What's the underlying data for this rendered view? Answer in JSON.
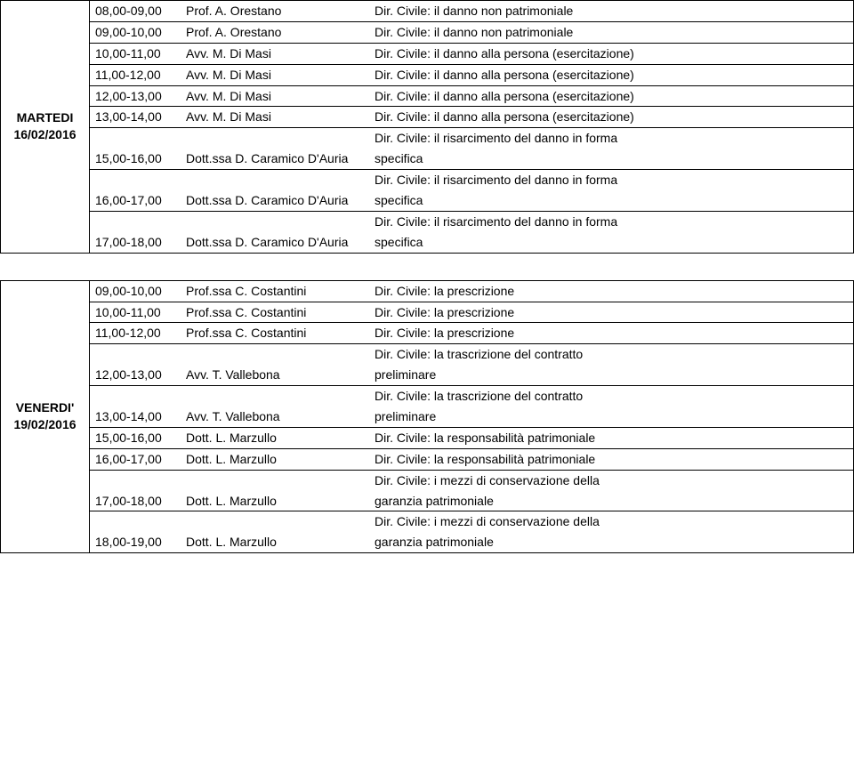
{
  "blocks": [
    {
      "day_label_1": "MARTEDI",
      "day_label_2": "16/02/2016",
      "vcenter": 5,
      "groups": [
        {
          "rows": [
            {
              "time": "08,00-09,00",
              "inst": "Prof. A. Orestano",
              "topic": "Dir. Civile: il danno non patrimoniale"
            }
          ]
        },
        {
          "rows": [
            {
              "time": "09,00-10,00",
              "inst": "Prof. A. Orestano",
              "topic": "Dir. Civile: il danno non patrimoniale"
            }
          ]
        },
        {
          "rows": [
            {
              "time": "10,00-11,00",
              "inst": "Avv. M. Di Masi",
              "topic": "Dir. Civile: il danno alla persona (esercitazione)"
            }
          ]
        },
        {
          "rows": [
            {
              "time": "11,00-12,00",
              "inst": "Avv. M. Di Masi",
              "topic": "Dir. Civile: il danno alla persona (esercitazione)"
            }
          ]
        },
        {
          "rows": [
            {
              "time": "12,00-13,00",
              "inst": "Avv. M. Di Masi",
              "topic": "Dir. Civile: il danno alla persona (esercitazione)"
            }
          ]
        },
        {
          "rows": [
            {
              "time": "13,00-14,00",
              "inst": "Avv. M. Di Masi",
              "topic": "Dir. Civile: il danno alla persona (esercitazione)"
            }
          ]
        },
        {
          "rows": [
            {
              "time": "",
              "inst": "",
              "topic": "Dir. Civile: il risarcimento del danno in forma"
            },
            {
              "time": "15,00-16,00",
              "inst": "Dott.ssa D. Caramico D'Auria",
              "topic": "specifica"
            }
          ]
        },
        {
          "rows": [
            {
              "time": "",
              "inst": "",
              "topic": "Dir. Civile: il risarcimento del danno in forma"
            },
            {
              "time": "16,00-17,00",
              "inst": "Dott.ssa D. Caramico D'Auria",
              "topic": "specifica"
            }
          ]
        },
        {
          "rows": [
            {
              "time": "",
              "inst": "",
              "topic": "Dir. Civile: il risarcimento del danno in forma"
            },
            {
              "time": "17,00-18,00",
              "inst": "Dott.ssa D. Caramico D'Auria",
              "topic": "specifica"
            }
          ]
        }
      ]
    },
    {
      "day_label_1": "VENERDI'",
      "day_label_2": "19/02/2016",
      "vcenter": 5,
      "groups": [
        {
          "rows": [
            {
              "time": "09,00-10,00",
              "inst": "Prof.ssa C. Costantini",
              "topic": "Dir. Civile: la prescrizione"
            }
          ]
        },
        {
          "rows": [
            {
              "time": "10,00-11,00",
              "inst": "Prof.ssa C. Costantini",
              "topic": "Dir. Civile: la prescrizione"
            }
          ]
        },
        {
          "rows": [
            {
              "time": "11,00-12,00",
              "inst": "Prof.ssa C. Costantini",
              "topic": "Dir. Civile: la prescrizione"
            }
          ]
        },
        {
          "rows": [
            {
              "time": "",
              "inst": "",
              "topic": "Dir. Civile: la trascrizione del contratto"
            },
            {
              "time": "12,00-13,00",
              "inst": "Avv. T. Vallebona",
              "topic": "preliminare"
            }
          ]
        },
        {
          "rows": [
            {
              "time": "",
              "inst": "",
              "topic": "Dir. Civile: la trascrizione del contratto"
            },
            {
              "time": "13,00-14,00",
              "inst": "Avv. T. Vallebona",
              "topic": "preliminare"
            }
          ]
        },
        {
          "rows": [
            {
              "time": "15,00-16,00",
              "inst": "Dott. L. Marzullo",
              "topic": "Dir. Civile: la responsabilità patrimoniale"
            }
          ]
        },
        {
          "rows": [
            {
              "time": "16,00-17,00",
              "inst": "Dott. L. Marzullo",
              "topic": "Dir. Civile: la responsabilità patrimoniale"
            }
          ]
        },
        {
          "rows": [
            {
              "time": "",
              "inst": "",
              "topic": "Dir. Civile: i mezzi di conservazione della"
            },
            {
              "time": "17,00-18,00",
              "inst": "Dott. L. Marzullo",
              "topic": "garanzia patrimoniale"
            }
          ]
        },
        {
          "rows": [
            {
              "time": "",
              "inst": "",
              "topic": "Dir. Civile: i mezzi di conservazione della"
            },
            {
              "time": "18,00-19,00",
              "inst": "Dott. L. Marzullo",
              "topic": "garanzia patrimoniale"
            }
          ]
        }
      ]
    }
  ]
}
